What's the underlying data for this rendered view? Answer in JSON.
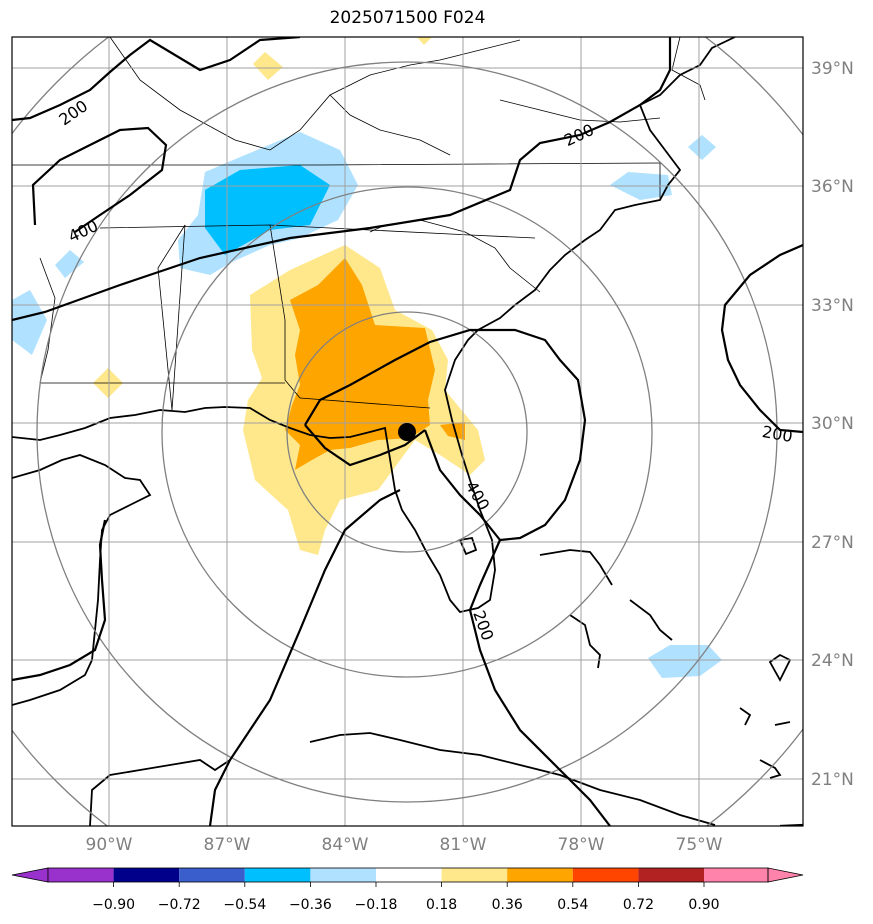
{
  "title": "2025071500 F024",
  "lat_labels": [
    "39°N",
    "36°N",
    "33°N",
    "30°N",
    "27°N",
    "24°N",
    "21°N"
  ],
  "lon_labels": [
    "90°W",
    "87°W",
    "84°W",
    "81°W",
    "78°W",
    "75°W"
  ],
  "contour_labels": [
    "200",
    "400",
    "200",
    "200",
    "400",
    "200"
  ],
  "colorbar": {
    "ticks": [
      "−0.90",
      "−0.72",
      "−0.54",
      "−0.36",
      "−0.18",
      "0.18",
      "0.36",
      "0.54",
      "0.72",
      "0.90"
    ],
    "colors": [
      "#9932cc",
      "#00008b",
      "#3a5fcd",
      "#00bfff",
      "#b0e2ff",
      "#ffffff",
      "#ffe88c",
      "#ffa500",
      "#ff4500",
      "#b22222",
      "#ff83ab"
    ]
  },
  "colors": {
    "grid": "#a0a0a0",
    "range_rings": "#808080",
    "contour": "#000000",
    "tick_label": "#808080"
  },
  "marker": {
    "label": "center-point",
    "lat": 29.8,
    "lon": -82.3
  }
}
